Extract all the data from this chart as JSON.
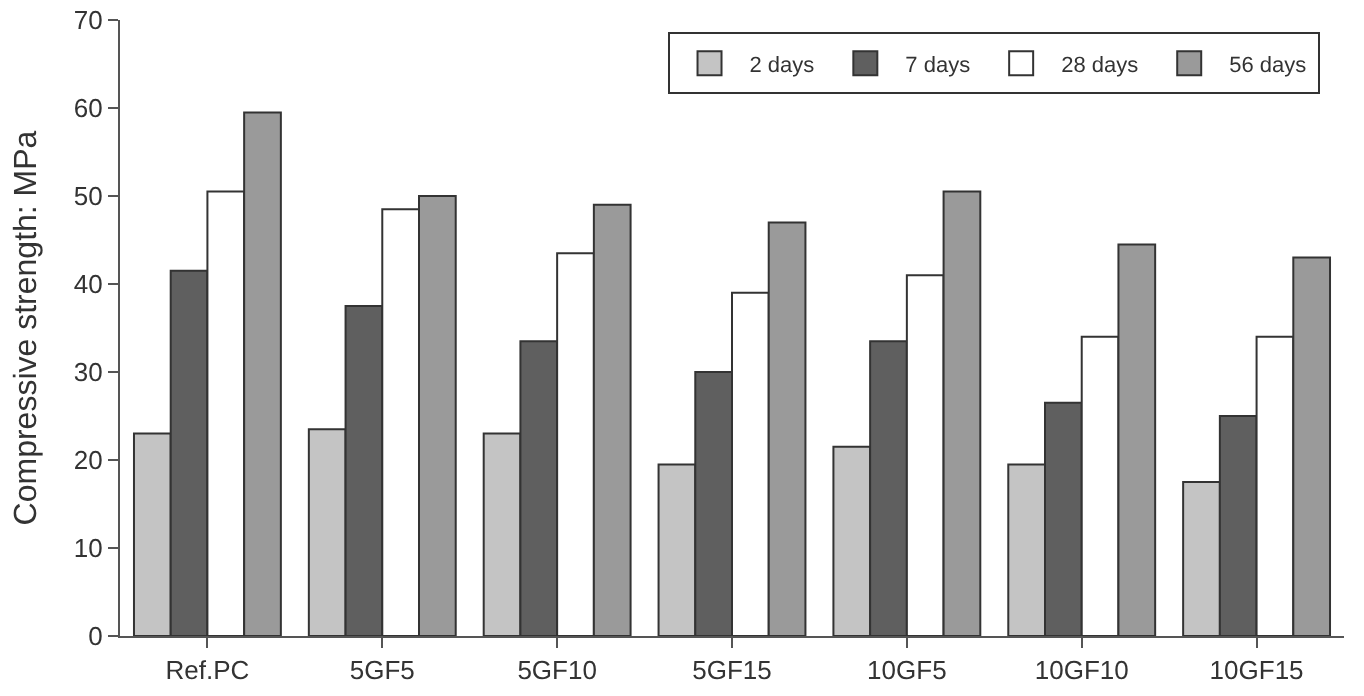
{
  "chart_data": {
    "type": "bar",
    "ylabel": "Compressive strength: MPa",
    "categories": [
      "Ref.PC",
      "5GF5",
      "5GF10",
      "5GF15",
      "10GF5",
      "10GF10",
      "10GF15"
    ],
    "series": [
      {
        "name": "2 days",
        "color": "#c4c4c4",
        "values": [
          23,
          23.5,
          23,
          19.5,
          21.5,
          19.5,
          17.5
        ]
      },
      {
        "name": "7 days",
        "color": "#5f5f5f",
        "values": [
          41.5,
          37.5,
          33.5,
          30,
          33.5,
          26.5,
          25
        ]
      },
      {
        "name": "28 days",
        "color": "#ffffff",
        "values": [
          50.5,
          48.5,
          43.5,
          39,
          41,
          34,
          34
        ]
      },
      {
        "name": "56 days",
        "color": "#9a9a9a",
        "values": [
          59.5,
          50,
          49,
          47,
          50.5,
          44.5,
          43
        ]
      }
    ],
    "ylim": [
      0,
      70
    ],
    "yticks": [
      0,
      10,
      20,
      30,
      40,
      50,
      60,
      70
    ],
    "grid": false,
    "legend": "top right"
  }
}
